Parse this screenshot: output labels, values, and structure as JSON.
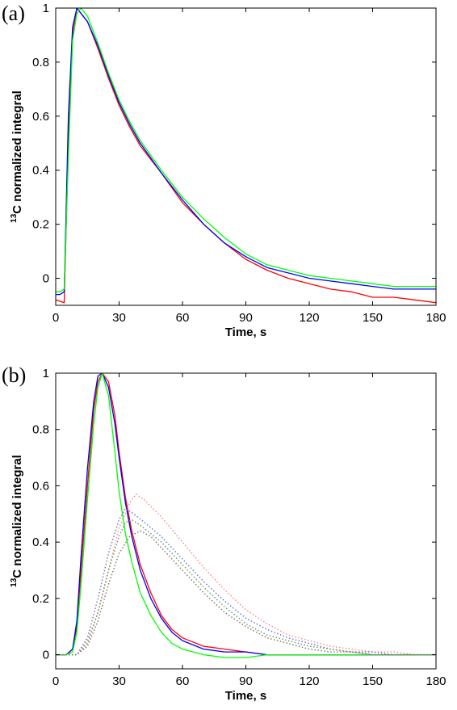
{
  "chart_data": [
    {
      "panel_label": "(a)",
      "type": "line",
      "xlabel": "Time, s",
      "ylabel_sup": "13",
      "ylabel": "C normalized integral",
      "xlim": [
        0,
        180
      ],
      "ylim": [
        -0.1,
        1
      ],
      "xticks": [
        0,
        30,
        60,
        90,
        120,
        150,
        180
      ],
      "yticks": [
        0,
        0.2,
        0.4,
        0.6,
        0.8,
        1
      ],
      "ytick_labels": [
        "0",
        "0.2",
        "0.4",
        "0.6",
        "0.8",
        "1"
      ],
      "grid": false,
      "series": [
        {
          "color": "#ff0000",
          "style": "solid",
          "x": [
            0,
            4,
            6,
            8,
            10,
            12,
            15,
            20,
            25,
            30,
            35,
            40,
            50,
            60,
            70,
            80,
            90,
            100,
            110,
            120,
            130,
            140,
            150,
            160,
            170,
            180
          ],
          "y": [
            -0.08,
            -0.09,
            0.5,
            0.9,
            1.0,
            0.98,
            0.95,
            0.85,
            0.74,
            0.64,
            0.56,
            0.49,
            0.39,
            0.28,
            0.2,
            0.13,
            0.07,
            0.03,
            0.0,
            -0.02,
            -0.04,
            -0.05,
            -0.07,
            -0.07,
            -0.08,
            -0.09
          ]
        },
        {
          "color": "#0000ff",
          "style": "solid",
          "x": [
            0,
            2,
            4,
            6,
            8,
            10,
            12,
            15,
            20,
            25,
            30,
            35,
            40,
            50,
            60,
            70,
            80,
            90,
            100,
            110,
            120,
            130,
            140,
            150,
            160,
            170,
            180
          ],
          "y": [
            -0.06,
            -0.06,
            -0.05,
            0.6,
            0.93,
            1.0,
            0.98,
            0.95,
            0.86,
            0.75,
            0.65,
            0.57,
            0.5,
            0.39,
            0.29,
            0.2,
            0.13,
            0.08,
            0.04,
            0.02,
            0.0,
            -0.01,
            -0.02,
            -0.03,
            -0.04,
            -0.04,
            -0.04
          ]
        },
        {
          "color": "#00ff00",
          "style": "solid",
          "x": [
            0,
            2,
            4,
            6,
            8,
            10,
            12,
            15,
            20,
            25,
            30,
            35,
            40,
            50,
            60,
            70,
            80,
            90,
            100,
            110,
            120,
            130,
            140,
            150,
            160,
            170,
            180
          ],
          "y": [
            -0.05,
            -0.05,
            -0.04,
            0.45,
            0.88,
            0.98,
            1.0,
            0.97,
            0.87,
            0.76,
            0.66,
            0.58,
            0.51,
            0.4,
            0.3,
            0.22,
            0.15,
            0.09,
            0.05,
            0.03,
            0.01,
            0.0,
            -0.01,
            -0.02,
            -0.03,
            -0.03,
            -0.03
          ]
        }
      ]
    },
    {
      "panel_label": "(b)",
      "type": "line",
      "xlabel": "Time, s",
      "ylabel_sup": "13",
      "ylabel": "C normalized integral",
      "xlim": [
        0,
        180
      ],
      "ylim": [
        -0.05,
        1
      ],
      "xticks": [
        0,
        30,
        60,
        90,
        120,
        150,
        180
      ],
      "yticks": [
        0,
        0.2,
        0.4,
        0.6,
        0.8,
        1
      ],
      "ytick_labels": [
        "0",
        "0.2",
        "0.4",
        "0.6",
        "0.8",
        "1"
      ],
      "grid": false,
      "series": [
        {
          "color": "#ff0000",
          "style": "solid",
          "x": [
            0,
            5,
            8,
            10,
            12,
            15,
            18,
            20,
            22,
            25,
            28,
            30,
            33,
            36,
            40,
            45,
            50,
            55,
            60,
            70,
            80,
            90,
            100,
            120,
            140,
            160,
            180
          ],
          "y": [
            0,
            0,
            0.02,
            0.1,
            0.3,
            0.6,
            0.87,
            0.97,
            1.0,
            0.97,
            0.85,
            0.72,
            0.56,
            0.44,
            0.32,
            0.22,
            0.14,
            0.09,
            0.06,
            0.03,
            0.02,
            0.01,
            0.0,
            0.0,
            0.0,
            0.0,
            0.0
          ]
        },
        {
          "color": "#0000ff",
          "style": "solid",
          "x": [
            0,
            5,
            8,
            10,
            12,
            15,
            18,
            20,
            22,
            25,
            28,
            30,
            33,
            36,
            40,
            45,
            50,
            55,
            60,
            70,
            80,
            90,
            100,
            120,
            140,
            160,
            180
          ],
          "y": [
            0,
            0,
            0.02,
            0.12,
            0.35,
            0.66,
            0.9,
            0.99,
            1.0,
            0.95,
            0.82,
            0.7,
            0.54,
            0.42,
            0.3,
            0.2,
            0.13,
            0.08,
            0.05,
            0.02,
            0.01,
            0.01,
            0.0,
            0.0,
            0.0,
            0.0,
            0.0
          ]
        },
        {
          "color": "#00ff00",
          "style": "solid",
          "x": [
            0,
            5,
            8,
            10,
            12,
            15,
            18,
            20,
            22,
            25,
            28,
            30,
            33,
            36,
            40,
            45,
            50,
            55,
            60,
            70,
            80,
            90,
            100,
            120,
            140,
            160,
            180
          ],
          "y": [
            0,
            0,
            0.01,
            0.08,
            0.25,
            0.55,
            0.82,
            0.95,
            1.0,
            0.92,
            0.72,
            0.58,
            0.43,
            0.33,
            0.22,
            0.14,
            0.08,
            0.04,
            0.02,
            0.0,
            -0.01,
            -0.01,
            0.0,
            0.0,
            0.0,
            0.0,
            0.0
          ]
        },
        {
          "color": "#ff8080",
          "style": "dotted",
          "x": [
            0,
            10,
            15,
            20,
            25,
            30,
            35,
            38,
            42,
            50,
            60,
            70,
            80,
            90,
            100,
            110,
            120,
            130,
            140,
            150,
            160,
            170,
            180
          ],
          "y": [
            0,
            0,
            0.05,
            0.15,
            0.3,
            0.45,
            0.54,
            0.57,
            0.55,
            0.49,
            0.4,
            0.31,
            0.23,
            0.16,
            0.11,
            0.07,
            0.05,
            0.03,
            0.02,
            0.01,
            0.01,
            0.0,
            0.0
          ]
        },
        {
          "color": "#6b6bdb",
          "style": "dotted",
          "x": [
            0,
            10,
            15,
            20,
            25,
            30,
            33,
            37,
            42,
            50,
            60,
            70,
            80,
            90,
            100,
            110,
            120,
            130,
            140,
            150,
            160,
            170,
            180
          ],
          "y": [
            0,
            0,
            0.06,
            0.2,
            0.36,
            0.48,
            0.52,
            0.5,
            0.47,
            0.42,
            0.34,
            0.26,
            0.19,
            0.13,
            0.09,
            0.06,
            0.04,
            0.02,
            0.01,
            0.01,
            0.0,
            0.0,
            0.0
          ]
        },
        {
          "color": "#5aa05a",
          "style": "dotted",
          "x": [
            0,
            10,
            15,
            20,
            25,
            30,
            33,
            36,
            40,
            50,
            60,
            70,
            80,
            90,
            100,
            110,
            120,
            130,
            140,
            150,
            160,
            170,
            180
          ],
          "y": [
            0,
            0,
            0.04,
            0.15,
            0.3,
            0.42,
            0.47,
            0.48,
            0.46,
            0.4,
            0.32,
            0.24,
            0.17,
            0.11,
            0.07,
            0.05,
            0.03,
            0.02,
            0.01,
            0.0,
            0.0,
            0.0,
            0.0
          ]
        },
        {
          "color": "#8a6a6a",
          "style": "dotted",
          "x": [
            0,
            10,
            15,
            20,
            25,
            30,
            35,
            40,
            45,
            50,
            60,
            70,
            80,
            90,
            100,
            110,
            120,
            130,
            140,
            150,
            160,
            170,
            180
          ],
          "y": [
            0,
            0,
            0.03,
            0.12,
            0.25,
            0.36,
            0.42,
            0.44,
            0.42,
            0.38,
            0.3,
            0.22,
            0.15,
            0.1,
            0.06,
            0.04,
            0.02,
            0.01,
            0.01,
            0.0,
            0.0,
            0.0,
            0.0
          ]
        }
      ]
    }
  ]
}
